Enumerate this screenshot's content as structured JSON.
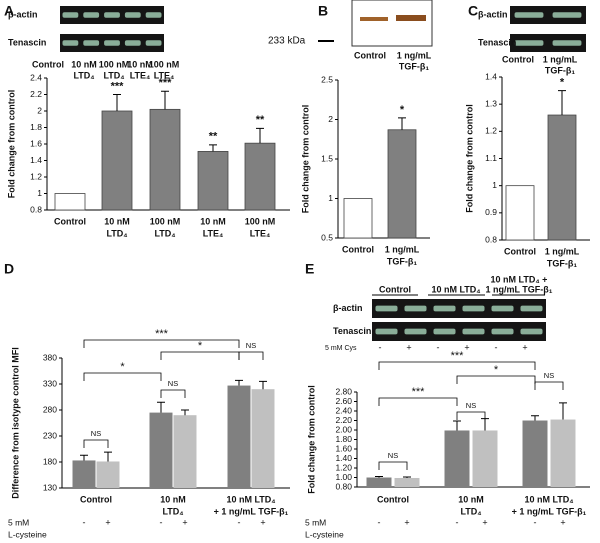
{
  "chart_data": [
    {
      "panel": "A",
      "type": "bar",
      "blot_rows": [
        "β-actin",
        "Tenascin"
      ],
      "categories": [
        [
          "Control"
        ],
        [
          "10 nM",
          "LTD₄"
        ],
        [
          "100 nM",
          "LTD₄"
        ],
        [
          "10 nM",
          "LTE₄"
        ],
        [
          "100 nM",
          "LTE₄"
        ]
      ],
      "values": [
        1,
        2.0,
        2.02,
        1.51,
        1.61
      ],
      "errors": [
        null,
        0.2,
        0.22,
        0.08,
        0.18
      ],
      "value_annotations": [
        null,
        "***",
        "***",
        "**",
        "**"
      ],
      "colors": [
        "#ffffff",
        "#808080",
        "#808080",
        "#808080",
        "#808080"
      ],
      "ylim": [
        0.8,
        2.4
      ],
      "yticks": [
        0.8,
        1,
        1.2,
        1.4,
        1.6,
        1.8,
        2,
        2.2,
        2.4
      ],
      "y_label": "Fold change from control"
    },
    {
      "panel": "B",
      "type": "bar",
      "blot_marker": "233 kDa",
      "categories": [
        [
          "Control"
        ],
        [
          "1 ng/mL",
          "TGF-β₁"
        ]
      ],
      "values": [
        1,
        1.87
      ],
      "errors": [
        null,
        0.15
      ],
      "value_annotations": [
        null,
        "*"
      ],
      "colors": [
        "#ffffff",
        "#808080"
      ],
      "ylim": [
        0.5,
        2.5
      ],
      "yticks": [
        0.5,
        1,
        1.5,
        2,
        2.5
      ],
      "y_label": "Fold change from control"
    },
    {
      "panel": "C",
      "type": "bar",
      "blot_rows": [
        "β-actin",
        "Tenascin"
      ],
      "categories": [
        [
          "Control"
        ],
        [
          "1 ng/mL",
          "TGF-β₁"
        ]
      ],
      "values": [
        1,
        1.26
      ],
      "errors": [
        null,
        0.09
      ],
      "value_annotations": [
        null,
        "*"
      ],
      "colors": [
        "#ffffff",
        "#808080"
      ],
      "ylim": [
        0.8,
        1.4
      ],
      "yticks": [
        0.8,
        0.9,
        1,
        1.1,
        1.2,
        1.3,
        1.4
      ],
      "y_label": "Fold change from control"
    },
    {
      "panel": "D",
      "type": "grouped_bar",
      "categories": [
        [
          "Control"
        ],
        [
          "10 nM",
          "LTD₄"
        ],
        [
          "10 nM LTD₄",
          "+ 1 ng/mL TGF-β₁"
        ]
      ],
      "series": [
        {
          "name": "-",
          "color": "#808080",
          "values": [
            183,
            275,
            327
          ],
          "errors": [
            10,
            20,
            10
          ]
        },
        {
          "name": "+",
          "color": "#c0c0c0",
          "values": [
            181,
            270,
            320
          ],
          "errors": [
            18,
            10,
            15
          ]
        }
      ],
      "treatment_label": [
        "5 mM",
        "L-cysteine"
      ],
      "comparisons": [
        "NS",
        "NS",
        "NS",
        "*",
        "*",
        "***"
      ],
      "ylim": [
        130,
        380
      ],
      "yticks": [
        130,
        180,
        230,
        280,
        330,
        380
      ],
      "y_label": "Difference from isotype control MFI"
    },
    {
      "panel": "E",
      "type": "grouped_bar",
      "blot_rows": [
        "β-actin",
        "Tenascin"
      ],
      "blot_lanes": [
        [
          "Control"
        ],
        [
          "10 nM LTD₄"
        ],
        [
          "10 nM LTD₄ +",
          "1 ng/mL TGF-β₁"
        ]
      ],
      "blot_treatment": "5 mM Cys",
      "categories": [
        [
          "Control"
        ],
        [
          "10 nM",
          "LTD₄"
        ],
        [
          "10 nM LTD₄",
          "+ 1 ng/mL TGF-β₁"
        ]
      ],
      "series": [
        {
          "name": "-",
          "color": "#808080",
          "values": [
            1.0,
            1.99,
            2.2
          ],
          "errors": [
            0.02,
            0.2,
            0.1
          ]
        },
        {
          "name": "+",
          "color": "#c0c0c0",
          "values": [
            0.99,
            1.99,
            2.22
          ],
          "errors": [
            0.02,
            0.25,
            0.35
          ]
        }
      ],
      "treatment_label": [
        "5 mM",
        "L-cysteine"
      ],
      "comparisons": [
        "NS",
        "NS",
        "NS",
        "***",
        "*",
        "***"
      ],
      "ylim": [
        0.8,
        2.8
      ],
      "yticks": [
        {
          "value": 0.8,
          "label": "0.80"
        },
        {
          "value": 1,
          "label": "1.00"
        },
        {
          "value": 1.2,
          "label": "1.20"
        },
        {
          "value": 1.4,
          "label": "1.40"
        },
        {
          "value": 1.6,
          "label": "1.60"
        },
        {
          "value": 1.8,
          "label": "1.80"
        },
        {
          "value": 2,
          "label": "2.00"
        },
        {
          "value": 2.2,
          "label": "2.20"
        },
        {
          "value": 2.4,
          "label": "2.40"
        },
        {
          "value": 2.6,
          "label": "2.60"
        },
        {
          "value": 2.8,
          "label": "2.80"
        }
      ],
      "y_label": "Fold change from control"
    }
  ]
}
